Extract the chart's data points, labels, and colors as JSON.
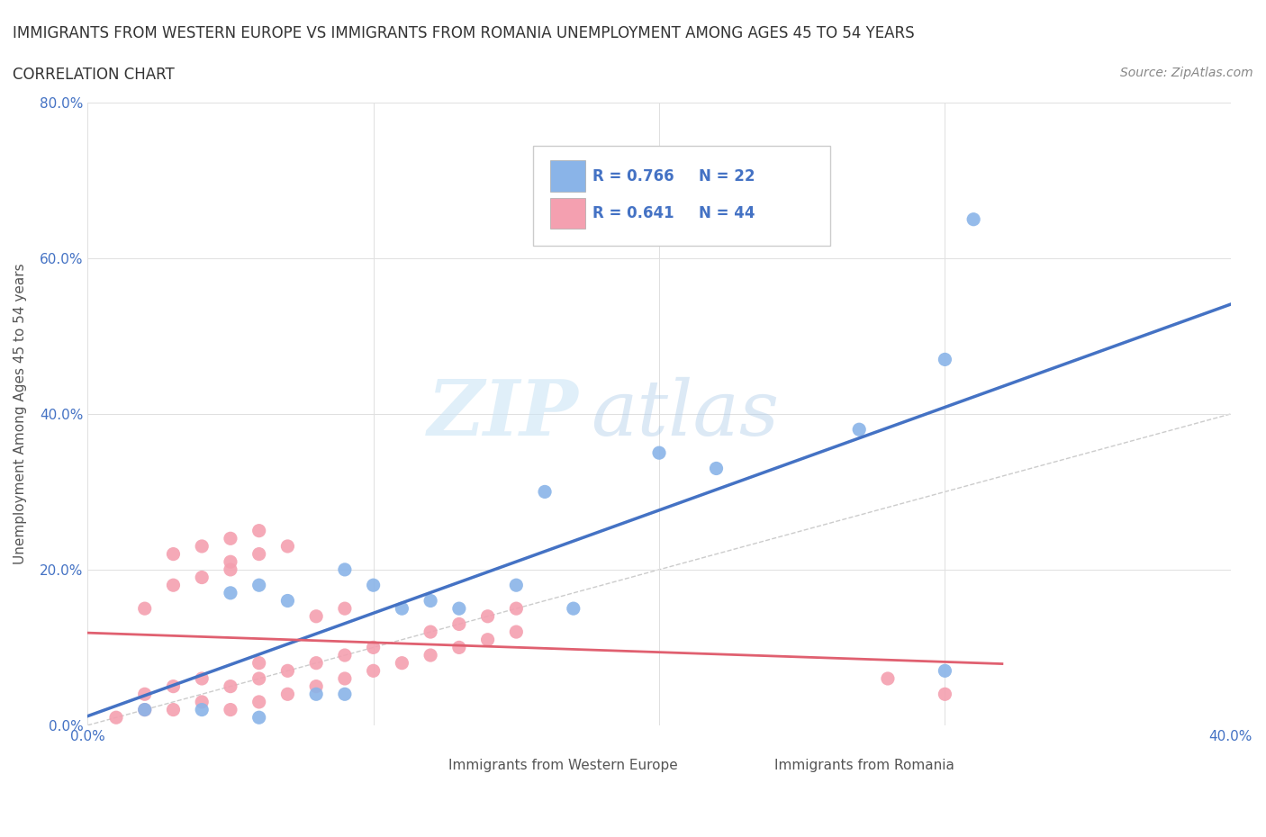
{
  "title_line1": "IMMIGRANTS FROM WESTERN EUROPE VS IMMIGRANTS FROM ROMANIA UNEMPLOYMENT AMONG AGES 45 TO 54 YEARS",
  "title_line2": "CORRELATION CHART",
  "source": "Source: ZipAtlas.com",
  "ylabel": "Unemployment Among Ages 45 to 54 years",
  "xlim": [
    0.0,
    0.4
  ],
  "ylim": [
    0.0,
    0.8
  ],
  "western_europe_color": "#8ab4e8",
  "romania_color": "#f4a0b0",
  "trendline_we_color": "#4472c4",
  "trendline_ro_color": "#e06070",
  "diagonal_color": "#cccccc",
  "R_we": 0.766,
  "N_we": 22,
  "R_ro": 0.641,
  "N_ro": 44,
  "watermark_zip": "ZIP",
  "watermark_atlas": "atlas",
  "western_europe_x": [
    0.02,
    0.04,
    0.05,
    0.06,
    0.07,
    0.08,
    0.09,
    0.1,
    0.11,
    0.12,
    0.13,
    0.15,
    0.16,
    0.17,
    0.2,
    0.22,
    0.27,
    0.3,
    0.31,
    0.3,
    0.06,
    0.09
  ],
  "western_europe_y": [
    0.02,
    0.02,
    0.17,
    0.18,
    0.16,
    0.04,
    0.2,
    0.18,
    0.15,
    0.16,
    0.15,
    0.18,
    0.3,
    0.15,
    0.35,
    0.33,
    0.38,
    0.47,
    0.65,
    0.07,
    0.01,
    0.04
  ],
  "romania_x": [
    0.01,
    0.02,
    0.02,
    0.03,
    0.03,
    0.04,
    0.04,
    0.05,
    0.05,
    0.06,
    0.06,
    0.06,
    0.07,
    0.07,
    0.08,
    0.08,
    0.09,
    0.09,
    0.1,
    0.1,
    0.11,
    0.12,
    0.12,
    0.13,
    0.13,
    0.14,
    0.14,
    0.15,
    0.15,
    0.02,
    0.03,
    0.03,
    0.04,
    0.04,
    0.05,
    0.05,
    0.05,
    0.06,
    0.06,
    0.07,
    0.08,
    0.09,
    0.28,
    0.3
  ],
  "romania_y": [
    0.01,
    0.02,
    0.04,
    0.02,
    0.05,
    0.03,
    0.06,
    0.02,
    0.05,
    0.03,
    0.06,
    0.08,
    0.04,
    0.07,
    0.05,
    0.08,
    0.06,
    0.09,
    0.07,
    0.1,
    0.08,
    0.09,
    0.12,
    0.1,
    0.13,
    0.11,
    0.14,
    0.12,
    0.15,
    0.15,
    0.18,
    0.22,
    0.19,
    0.23,
    0.2,
    0.24,
    0.21,
    0.22,
    0.25,
    0.23,
    0.14,
    0.15,
    0.06,
    0.04
  ]
}
